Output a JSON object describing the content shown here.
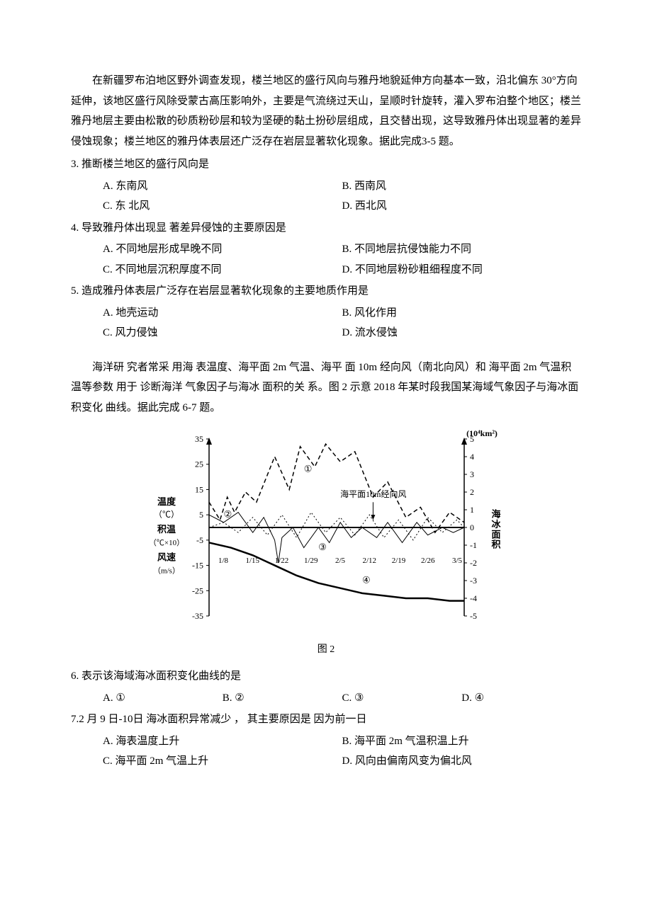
{
  "passage1": "在新疆罗布泊地区野外调查发现，楼兰地区的盛行风向与雅丹地貌延伸方向基本一致，沿北偏东 30°方向延伸，该地区盛行风除受蒙古高压影响外，主要是气流绕过天山，呈顺时针旋转，灌入罗布泊整个地区；楼兰雅丹地层主要由松散的砂质粉砂层和较为坚硬的黏土扮砂层组成，且交替出现，这导致雅丹体出现显著的差异侵蚀现象；楼兰地区的雅丹体表层还广泛存在岩层显著软化现象。据此完成3-5 题。",
  "q3": {
    "stem": "3. 推断楼兰地区的盛行风向是",
    "A": "A. 东南风",
    "B": "B.  西南风",
    "C": "C. 东 北风",
    "D": "D.  西北风"
  },
  "q4": {
    "stem": "4. 导致雅丹体出现显 著差异侵蚀的主要原因是",
    "A": "A. 不同地层形成早晚不同",
    "B": "B. 不同地层抗侵蚀能力不同",
    "C": "C. 不同地层沉积厚度不同",
    "D": "D. 不同地层粉砂粗细程度不同"
  },
  "q5": {
    "stem": "5. 造成雅丹体表层广泛存在岩层显著软化现象的主要地质作用是",
    "A": "A. 地壳运动",
    "B": "B. 风化作用",
    "C": "C.  风力侵蚀",
    "D": "D.  流水侵蚀"
  },
  "passage2": "海洋研 究者常采 用海 表温度、海平面 2m 气温、海平 面 10m 经向风（南北向风）和 海平面 2m 气温积温等参数  用于 诊断海洋 气象因子与海冰   面积的关 系。图 2 示意 2018 年某时段我国某海域气象因子与海冰面   积变化 曲线。据此完成  6-7 题。",
  "chart": {
    "caption": "图 2",
    "left_axis": {
      "title_line1": "温度",
      "title_line2": "（℃）",
      "title_line3": "积温",
      "title_line4": "（℃×10）",
      "title_line5": "风速",
      "title_line6": "（m/s）",
      "ticks": [
        35,
        25,
        15,
        5,
        -5,
        -15,
        -25,
        -35
      ]
    },
    "right_axis": {
      "title_unit": "(10⁴km²)",
      "title_line1": "海",
      "title_line2": "冰",
      "title_line3": "面",
      "title_line4": "积",
      "ticks": [
        5,
        4,
        3,
        2,
        1,
        0,
        -1,
        -2,
        -3,
        -4,
        -5
      ]
    },
    "x_labels": [
      "1/8",
      "1/15",
      "1/22",
      "1/29",
      "2/5",
      "2/12",
      "2/19",
      "2/26",
      "3/5"
    ],
    "annotations": {
      "wind_label": "海平面10m经向风",
      "circ1": "①",
      "circ2": "②",
      "circ3": "③",
      "circ4": "④"
    },
    "series1_dashed": [
      [
        0,
        10
      ],
      [
        15,
        3
      ],
      [
        25,
        12
      ],
      [
        35,
        6
      ],
      [
        50,
        14
      ],
      [
        65,
        10
      ],
      [
        90,
        28
      ],
      [
        110,
        15
      ],
      [
        125,
        32
      ],
      [
        145,
        24
      ],
      [
        160,
        33
      ],
      [
        180,
        26
      ],
      [
        200,
        30
      ],
      [
        225,
        12
      ],
      [
        245,
        18
      ],
      [
        270,
        4
      ],
      [
        290,
        8
      ],
      [
        310,
        -2
      ],
      [
        330,
        6
      ],
      [
        350,
        2
      ]
    ],
    "series2_thin": [
      [
        0,
        5
      ],
      [
        20,
        2
      ],
      [
        40,
        6
      ],
      [
        60,
        -2
      ],
      [
        75,
        4
      ],
      [
        90,
        -5
      ],
      [
        95,
        -14
      ],
      [
        100,
        -4
      ],
      [
        115,
        0
      ],
      [
        130,
        -8
      ],
      [
        150,
        0
      ],
      [
        165,
        -6
      ],
      [
        180,
        2
      ],
      [
        195,
        -4
      ],
      [
        210,
        0
      ],
      [
        230,
        -4
      ],
      [
        245,
        2
      ],
      [
        265,
        -6
      ],
      [
        285,
        2
      ],
      [
        300,
        -3
      ],
      [
        320,
        0
      ],
      [
        335,
        -2
      ],
      [
        350,
        0
      ]
    ],
    "series3_dotted": [
      [
        0,
        0
      ],
      [
        20,
        2
      ],
      [
        40,
        -2
      ],
      [
        60,
        4
      ],
      [
        80,
        -3
      ],
      [
        100,
        5
      ],
      [
        120,
        -4
      ],
      [
        140,
        6
      ],
      [
        160,
        -2
      ],
      [
        180,
        4
      ],
      [
        200,
        -3
      ],
      [
        220,
        5
      ],
      [
        240,
        -4
      ],
      [
        260,
        3
      ],
      [
        280,
        -5
      ],
      [
        300,
        4
      ],
      [
        320,
        -2
      ],
      [
        340,
        3
      ],
      [
        350,
        0
      ]
    ],
    "series4_bold": [
      [
        0,
        -6
      ],
      [
        30,
        -8
      ],
      [
        60,
        -11
      ],
      [
        90,
        -15
      ],
      [
        120,
        -19
      ],
      [
        150,
        -22
      ],
      [
        180,
        -24
      ],
      [
        210,
        -26
      ],
      [
        240,
        -27
      ],
      [
        270,
        -28
      ],
      [
        300,
        -28
      ],
      [
        330,
        -29
      ],
      [
        350,
        -29
      ]
    ],
    "colors": {
      "axis": "#000000",
      "line": "#000000",
      "background": "#ffffff"
    }
  },
  "q6": {
    "stem": "6. 表示该海域海冰面积变化曲线的是",
    "A": "A. ①",
    "B": "B.  ②",
    "C": "C.  ③",
    "D": "D.  ④"
  },
  "q7": {
    "stem": "7.2 月 9 日-10日 海冰面积异常减少 ， 其主要原因是 因为前一日",
    "A": "A. 海表温度上升",
    "B": "B.  海平面 2m 气温积温上升",
    "C": "C.  海平面 2m 气温上升",
    "D": "D.  风向由偏南风变为偏北风"
  }
}
